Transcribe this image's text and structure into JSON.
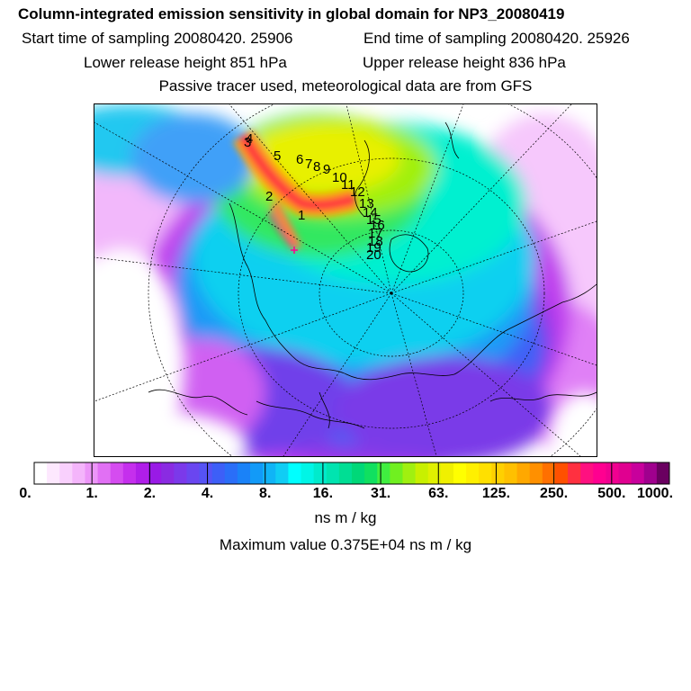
{
  "header": {
    "title": "Column-integrated emission sensitivity in global domain for NP3_20080419",
    "start_label": "Start time of sampling 20080420. 25906",
    "end_label": "End time of sampling 20080420. 25926",
    "lower_label": "Lower release height  851 hPa",
    "upper_label": "Upper release height  836 hPa",
    "tracer_note": "Passive tracer used, meteorological data are from GFS"
  },
  "colorbar": {
    "ticks": [
      "0.",
      "1.",
      "2.",
      "4.",
      "8.",
      "16.",
      "31.",
      "63.",
      "125.",
      "250.",
      "500.",
      "1000."
    ],
    "units": "ns m / kg",
    "colors": [
      "#ffffff",
      "#fde8fe",
      "#f9d0fd",
      "#f4b5fb",
      "#ec95f8",
      "#e170f4",
      "#d54cf0",
      "#c52fed",
      "#b01ee9",
      "#991ae6",
      "#8a2be2",
      "#7b39ea",
      "#6a46f0",
      "#5653f5",
      "#3d5ff7",
      "#2a6ef8",
      "#1a82f8",
      "#129af8",
      "#10b4f6",
      "#10cdf4",
      "#00ffff",
      "#00f5e6",
      "#00ebcc",
      "#00e4b0",
      "#00de94",
      "#00d878",
      "#10e060",
      "#40ee40",
      "#70f020",
      "#a0f010",
      "#c8f000",
      "#e0f000",
      "#f0f000",
      "#ffff00",
      "#fff000",
      "#ffe000",
      "#ffd000",
      "#ffc000",
      "#ffa800",
      "#ff9000",
      "#ff7000",
      "#ff5000",
      "#ff3040",
      "#ff1080",
      "#ff0090",
      "#f00090",
      "#e00090",
      "#c8009c",
      "#a0008e",
      "#6a0060"
    ]
  },
  "max_value_label": "Maximum value  0.375E+04 ns m / kg",
  "trajectory_labels": [
    "1",
    "2",
    "3",
    "4",
    "5",
    "6",
    "7",
    "8",
    "9",
    "10",
    "11",
    "12",
    "13",
    "14",
    "15",
    "16",
    "17",
    "18",
    "19",
    "20"
  ]
}
